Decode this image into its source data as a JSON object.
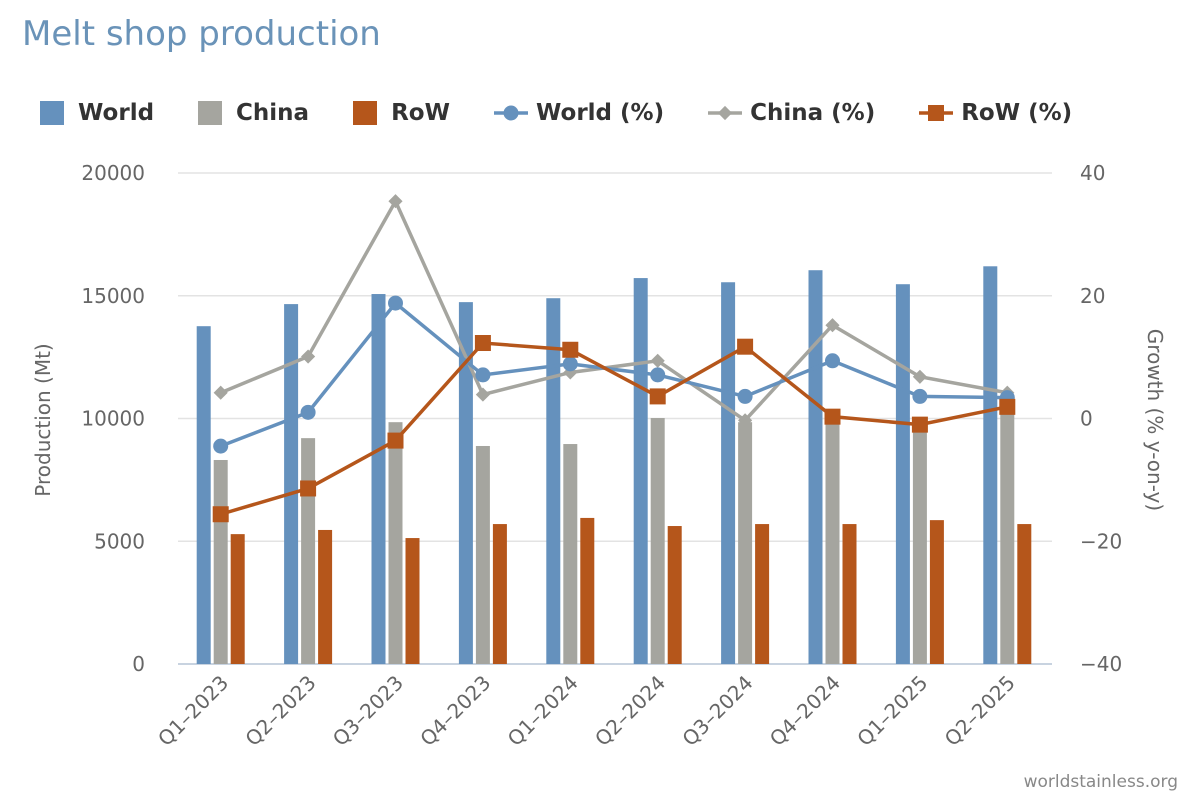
{
  "title": "Melt shop production",
  "credit": "worldstainless.org",
  "chart_data": {
    "type": "bar+line",
    "title": "Melt shop production",
    "categories": [
      "Q1-2023",
      "Q2-2023",
      "Q3-2023",
      "Q4-2023",
      "Q1-2024",
      "Q2-2024",
      "Q3-2024",
      "Q4-2024",
      "Q1-2025",
      "Q2-2025"
    ],
    "ylabel": "Production (Mt)",
    "y2label": "Growth (% y-on-y)",
    "ylim": [
      0,
      20000
    ],
    "y2lim": [
      -40,
      40
    ],
    "yticks": [
      "0",
      "5000",
      "10000",
      "15000",
      "20000"
    ],
    "y2ticks": [
      "−40",
      "−20",
      "0",
      "20",
      "40"
    ],
    "legend_position": "top",
    "bar_series": [
      {
        "name": "World",
        "color": "#6591bd",
        "values": [
          13760,
          14660,
          15070,
          14740,
          14900,
          15720,
          15550,
          16040,
          15470,
          16200
        ]
      },
      {
        "name": "China",
        "color": "#a5a59f",
        "values": [
          8310,
          9200,
          9850,
          8880,
          8960,
          10020,
          9850,
          9810,
          9530,
          10220
        ]
      },
      {
        "name": "RoW",
        "color": "#b5561b",
        "values": [
          5290,
          5460,
          5130,
          5700,
          5950,
          5620,
          5700,
          5700,
          5860,
          5700
        ]
      }
    ],
    "line_series": [
      {
        "name": "World (%)",
        "color": "#6591bd",
        "marker": "circle",
        "values": [
          -4.5,
          1.0,
          18.8,
          7.1,
          8.9,
          7.1,
          3.6,
          9.4,
          3.6,
          3.4
        ]
      },
      {
        "name": "China (%)",
        "color": "#a5a59f",
        "marker": "diamond",
        "values": [
          4.2,
          10.1,
          35.4,
          3.9,
          7.5,
          9.4,
          -0.3,
          15.2,
          6.8,
          4.2
        ]
      },
      {
        "name": "RoW (%)",
        "color": "#b5561b",
        "marker": "square",
        "values": [
          -15.6,
          -11.4,
          -3.6,
          12.3,
          11.2,
          3.6,
          11.7,
          0.3,
          -1.0,
          1.9
        ]
      }
    ]
  }
}
